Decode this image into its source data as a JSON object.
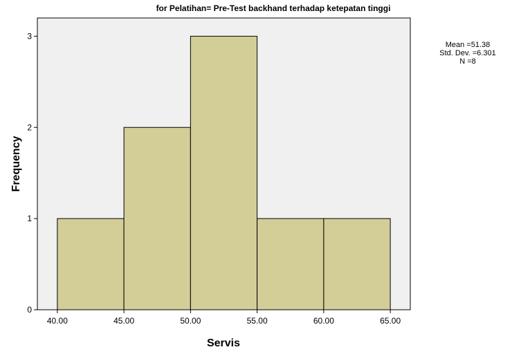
{
  "chart_data": {
    "type": "bar",
    "title": "for Pelatihan= Pre-Test backhand terhadap ketepatan tinggi",
    "xlabel": "Servis",
    "ylabel": "Frequency",
    "bins": [
      {
        "from": 40,
        "to": 45,
        "count": 1
      },
      {
        "from": 45,
        "to": 50,
        "count": 2
      },
      {
        "from": 50,
        "to": 55,
        "count": 3
      },
      {
        "from": 55,
        "to": 60,
        "count": 1
      },
      {
        "from": 60,
        "to": 65,
        "count": 1
      }
    ],
    "x_ticks": [
      "40.00",
      "45.00",
      "50.00",
      "55.00",
      "60.00",
      "65.00"
    ],
    "y_ticks": [
      "0",
      "1",
      "2",
      "3"
    ],
    "xlim": [
      38.5,
      66.5
    ],
    "ylim": [
      0,
      3.2
    ],
    "grid": false,
    "bar_color": "#d3cd98",
    "plot_background": "#f0f0f0",
    "stats": [
      "Mean =51.38",
      "Std. Dev. =6.301",
      "N =8"
    ]
  }
}
